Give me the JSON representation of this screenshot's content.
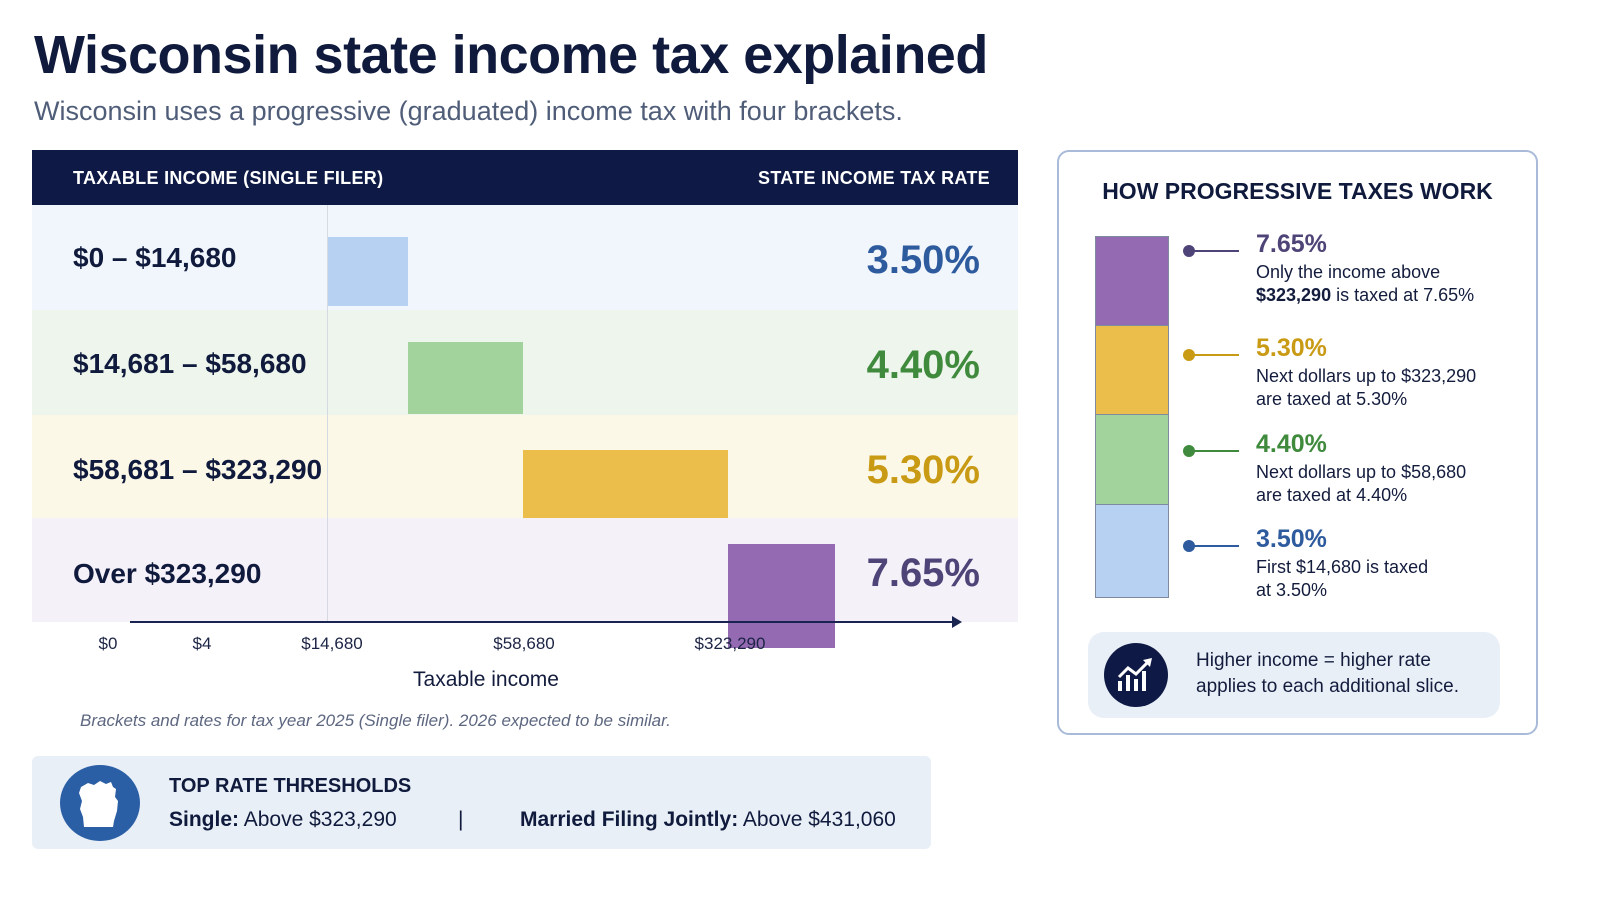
{
  "title": "Wisconsin state income tax explained",
  "subtitle": "Wisconsin uses a progressive (graduated) income tax with four brackets.",
  "table": {
    "col_left": "TAXABLE INCOME (SINGLE FILER)",
    "col_right": "STATE INCOME TAX RATE"
  },
  "chart_data": {
    "type": "bar",
    "orientation": "horizontal-range",
    "xlabel": "Taxable income",
    "x_ticks": [
      "$0",
      "$4",
      "$14,680",
      "$58,680",
      "$323,290"
    ],
    "categories": [
      "$0 – $14,680",
      "$14,681 – $58,680",
      "$58,681 – $323,290",
      "Over $323,290"
    ],
    "rates": [
      "3.50%",
      "4.40%",
      "5.30%",
      "7.65%"
    ],
    "values": [
      3.5,
      4.4,
      5.3,
      7.65
    ],
    "range_start": [
      0,
      14681,
      58681,
      323290
    ],
    "range_end": [
      14680,
      58680,
      323290,
      null
    ],
    "colors": [
      "#b7d1f2",
      "#a3d39d",
      "#ebbd4a",
      "#946bb2"
    ],
    "rate_colors": [
      "#2e5b9e",
      "#3f8a3d",
      "#c99a14",
      "#4f4477"
    ],
    "row_backgrounds": [
      "#f1f6fc",
      "#edf5ec",
      "#fcf8e8",
      "#f5f1f9"
    ]
  },
  "footnote": "Brackets and rates for tax year 2025 (Single filer). 2026 expected to be similar.",
  "thresholds": {
    "title": "TOP RATE THRESHOLDS",
    "single_label": "Single:",
    "single_value": "Above  $323,290",
    "separator": "|",
    "married_label": "Married Filing Jointly:",
    "married_value": "Above $431,060",
    "icon": "wisconsin-map-icon"
  },
  "progressive": {
    "title": "HOW PROGRESSIVE TAXES WORK",
    "items": [
      {
        "pct": "7.65%",
        "line1": "Only the income above",
        "line2_bold": "$323,290",
        "line2": " is taxed at 7.65%",
        "color": "#946bb2",
        "text_color": "#4f4477"
      },
      {
        "pct": "5.30%",
        "line1": "Next dollars up to $323,290",
        "line2_bold": "",
        "line2": "are taxed at 5.30%",
        "color": "#ebbd4a",
        "text_color": "#c99a14"
      },
      {
        "pct": "4.40%",
        "line1": "Next dollars up to $58,680",
        "line2_bold": "",
        "line2": "are taxed at 4.40%",
        "color": "#a3d39d",
        "text_color": "#3f8a3d"
      },
      {
        "pct": "3.50%",
        "line1": "First  $14,680 is taxed",
        "line2_bold": "",
        "line2": "at 3.50%",
        "color": "#b7d1f2",
        "text_color": "#2e5b9e"
      }
    ],
    "callout_line1": "Higher income = higher rate",
    "callout_line2": "applies to each additional slice.",
    "callout_icon": "trend-up-chart-icon"
  }
}
